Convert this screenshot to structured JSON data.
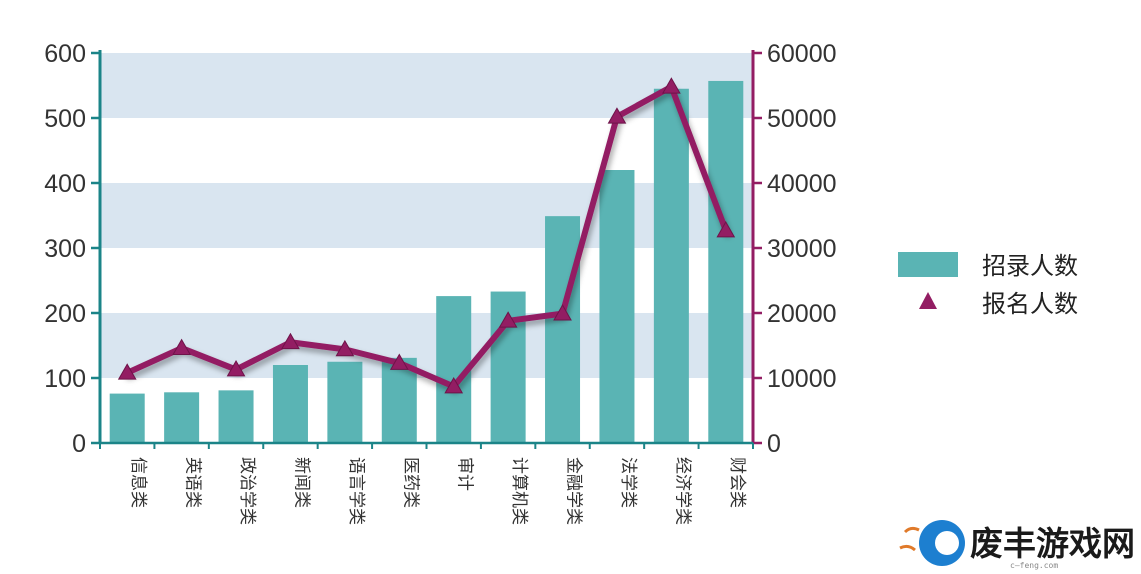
{
  "chart_data": {
    "type": "bar+line",
    "categories": [
      "信息类",
      "英语类",
      "政治学类",
      "新闻类",
      "语言学类",
      "医药类",
      "审计",
      "计算机类",
      "金融学类",
      "法学类",
      "经济学类",
      "财会类"
    ],
    "series": [
      {
        "name": "招录人数",
        "type": "bar",
        "axis": "left",
        "values": [
          76,
          78,
          81,
          120,
          125,
          131,
          226,
          233,
          349,
          420,
          545,
          557
        ]
      },
      {
        "name": "报名人数",
        "type": "line",
        "axis": "right",
        "values": [
          10800,
          14600,
          11300,
          15500,
          14400,
          12300,
          8700,
          18800,
          19900,
          50200,
          54800,
          32700
        ]
      }
    ],
    "left_axis": {
      "ylim": [
        0,
        600
      ],
      "ticks": [
        "0",
        "100",
        "200",
        "300",
        "400",
        "500",
        "600"
      ]
    },
    "right_axis": {
      "ylim": [
        0,
        60000
      ],
      "ticks": [
        "0",
        "10000",
        "20000",
        "30000",
        "40000",
        "50000",
        "60000"
      ]
    },
    "grid": "alternating horizontal bands",
    "legend": "right",
    "colors": {
      "bar": "#5ab4b4",
      "line": "#931d63",
      "band": "#d9e5f0",
      "left_axis": "#1b8488",
      "right_axis": "#931d63"
    }
  },
  "watermark": {
    "text": "废丰游戏网",
    "subtext": "c—feng.com"
  }
}
